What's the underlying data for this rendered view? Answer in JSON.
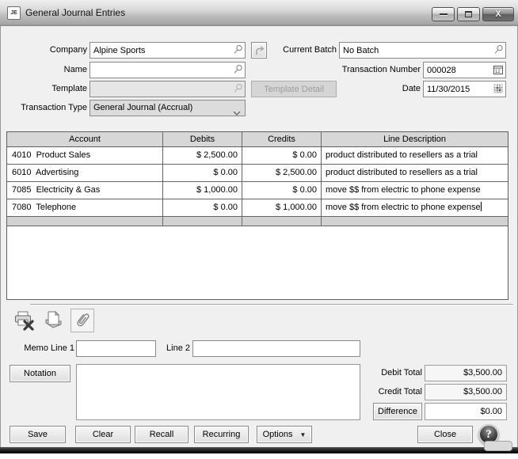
{
  "window": {
    "title": "General Journal Entries",
    "icon_label": "JE"
  },
  "form": {
    "company": {
      "label": "Company",
      "value": "Alpine Sports"
    },
    "current_batch": {
      "label": "Current Batch",
      "value": "No Batch"
    },
    "name": {
      "label": "Name",
      "value": ""
    },
    "transaction_number": {
      "label": "Transaction Number",
      "value": "000028"
    },
    "template": {
      "label": "Template",
      "value": ""
    },
    "template_detail_label": "Template Detail",
    "date": {
      "label": "Date",
      "value": "11/30/2015"
    },
    "transaction_type": {
      "label": "Transaction Type",
      "value": "General Journal (Accrual)"
    }
  },
  "toolbar": {
    "icons": [
      "print-delete-icon",
      "copy-document-icon",
      "paperclip-icon"
    ]
  },
  "table": {
    "columns": [
      "Account",
      "Debits",
      "Credits",
      "Line Description"
    ],
    "rows": [
      {
        "account": "4010  Product Sales",
        "debits": "$ 2,500.00",
        "credits": "$ 0.00",
        "description": "product distributed to resellers as a trial"
      },
      {
        "account": "6010  Advertising",
        "debits": "$ 0.00",
        "credits": "$ 2,500.00",
        "description": "product distributed to resellers as a trial"
      },
      {
        "account": "7085  Electricity & Gas",
        "debits": "$ 1,000.00",
        "credits": "$ 0.00",
        "description": "move $$ from electric to phone expense"
      },
      {
        "account": "7080  Telephone",
        "debits": "$ 0.00",
        "credits": "$ 1,000.00",
        "description": "move $$ from electric to phone expense",
        "caret": true
      }
    ]
  },
  "memo": {
    "line1_label": "Memo Line 1",
    "line1_value": "",
    "line2_label": "Line 2",
    "line2_value": ""
  },
  "notation": {
    "button_label": "Notation",
    "value": ""
  },
  "totals": {
    "debit": {
      "label": "Debit Total",
      "value": "$3,500.00"
    },
    "credit": {
      "label": "Credit Total",
      "value": "$3,500.00"
    },
    "difference": {
      "label": "Difference",
      "value": "$0.00"
    }
  },
  "buttons": {
    "save": "Save",
    "clear": "Clear",
    "recall": "Recall",
    "recurring": "Recurring",
    "options": "Options",
    "close": "Close",
    "help": "?"
  },
  "colors": {
    "window_background": "#f0f0f0",
    "table_header": "#d7d7d7",
    "grid_line": "#646464"
  }
}
